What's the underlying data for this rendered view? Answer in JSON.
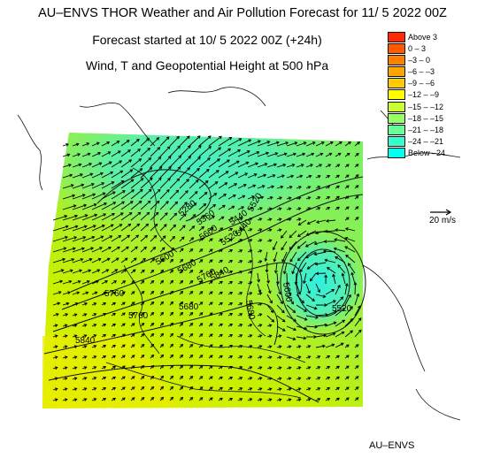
{
  "header": {
    "title": "AU–ENVS THOR Weather and Air Pollution Forecast for 11/ 5 2022  00Z",
    "forecast_started": "Forecast started at 10/ 5 2022  00Z (+24h)",
    "subtitle": "Wind, T and Geopotential Height at 500 hPa"
  },
  "legend": {
    "entries": [
      {
        "label": "Above     3",
        "color": "#ff2a00"
      },
      {
        "label": "0  –   3",
        "color": "#ff5a00"
      },
      {
        "label": "–3  –   0",
        "color": "#ff7f00"
      },
      {
        "label": "–6  –  –3",
        "color": "#ffa500"
      },
      {
        "label": "–9  –  –6",
        "color": "#ffcc00"
      },
      {
        "label": "–12  –  –9",
        "color": "#ffff00"
      },
      {
        "label": "–15  – –12",
        "color": "#ccff33"
      },
      {
        "label": "–18  – –15",
        "color": "#99ff66"
      },
      {
        "label": "–21  – –18",
        "color": "#66ff99"
      },
      {
        "label": "–24  – –21",
        "color": "#33ffcc"
      },
      {
        "label": "Below  –24",
        "color": "#00ffee"
      }
    ]
  },
  "wind_scale": {
    "label": "20 m/s"
  },
  "contour_labels": [
    "5280",
    "5360",
    "5440",
    "5520",
    "5600",
    "5680",
    "5760",
    "5840",
    "5520",
    "5600",
    "5680",
    "5760",
    "5840",
    "5680",
    "5760",
    "5600",
    "5520",
    "5440"
  ],
  "footer": {
    "credit": "AU–ENVS"
  }
}
